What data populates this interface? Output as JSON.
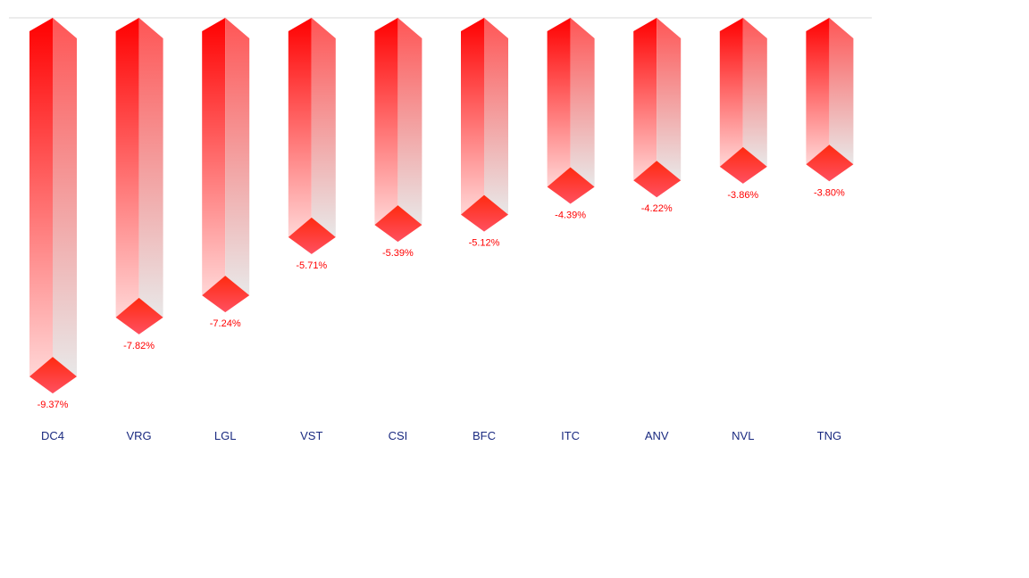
{
  "chart_data": {
    "type": "bar",
    "style": "3d-inverted-columns",
    "categories": [
      "DC4",
      "VRG",
      "LGL",
      "VST",
      "CSI",
      "BFC",
      "ITC",
      "ANV",
      "NVL",
      "TNG"
    ],
    "values": [
      -9.37,
      -7.82,
      -7.24,
      -5.71,
      -5.39,
      -5.12,
      -4.39,
      -4.22,
      -3.86,
      -3.8
    ],
    "labels": [
      "-9.37%",
      "-7.82%",
      "-7.24%",
      "-5.71%",
      "-5.39%",
      "-5.12%",
      "-4.39%",
      "-4.22%",
      "-3.86%",
      "-3.80%"
    ],
    "title": "",
    "xlabel": "",
    "ylabel": "",
    "colors": {
      "bar_top": "#ff0000",
      "bar_fade": "#ffd6d6",
      "side_top": "#ff5555",
      "side_fade": "#e8e8e8",
      "label": "#ff0000",
      "category": "#1a2a80",
      "baseline": "#d9d9d9"
    }
  }
}
